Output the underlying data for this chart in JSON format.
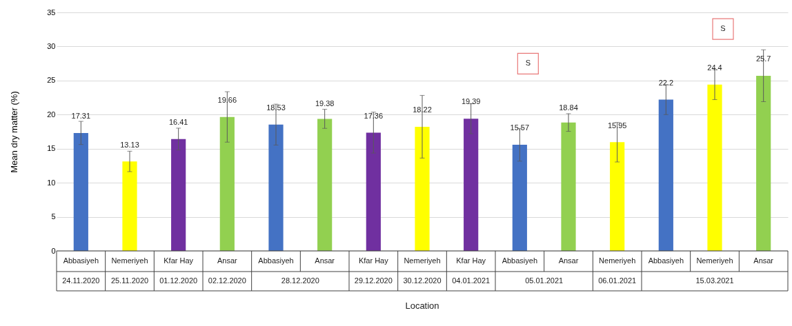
{
  "chart_data": {
    "type": "bar",
    "categories": [
      "Abbasiyeh",
      "Nemeriyeh",
      "Kfar Hay",
      "Ansar",
      "Abbasiyeh",
      "Ansar",
      "Kfar Hay",
      "Nemeriyeh",
      "Kfar Hay",
      "Abbasiyeh",
      "Ansar",
      "Nemeriyeh",
      "Abbasiyeh",
      "Nemeriyeh",
      "Ansar"
    ],
    "values": [
      17.31,
      13.13,
      16.41,
      19.66,
      18.53,
      19.38,
      17.36,
      18.22,
      19.39,
      15.57,
      18.84,
      15.95,
      22.2,
      24.4,
      25.7
    ],
    "colors": [
      "#4472c4",
      "#ffff00",
      "#7030a0",
      "#92d050",
      "#4472c4",
      "#92d050",
      "#7030a0",
      "#ffff00",
      "#7030a0",
      "#4472c4",
      "#92d050",
      "#ffff00",
      "#4472c4",
      "#ffff00",
      "#92d050"
    ],
    "errors": [
      1.7,
      1.5,
      1.6,
      3.7,
      3.0,
      1.4,
      3.0,
      4.6,
      2.2,
      2.4,
      1.3,
      2.9,
      2.2,
      2.2,
      3.8
    ],
    "data_labels": true,
    "xlabel": "Location",
    "ylabel": "Mean dry matter (%)",
    "ylim": [
      0,
      35
    ],
    "yticks": [
      0,
      5,
      10,
      15,
      20,
      25,
      30,
      35
    ],
    "grid": "y",
    "annotations": [
      "24.11.2020",
      "25.11.2020",
      "01.12.2020",
      "02.12.2020",
      "28.12.2020",
      "29.12.2020",
      "30.12.2020",
      "04.01.2021",
      "05.01.2021",
      "06.01.2021",
      "15.03.2021",
      "S",
      "S"
    ]
  }
}
